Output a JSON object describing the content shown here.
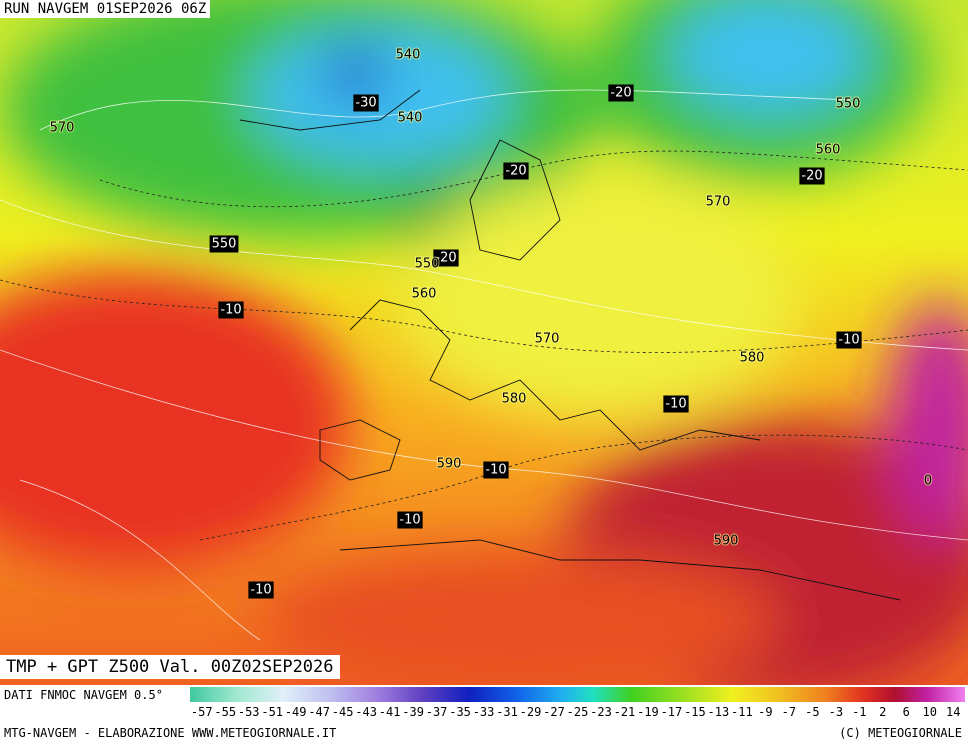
{
  "header": {
    "title": "RUN NAVGEM 01SEP2026 06Z"
  },
  "map": {
    "caption": "TMP + GPT Z500 Val. 00Z02SEP2026",
    "contour_labels": [
      "540",
      "-30",
      "540",
      "570",
      "-20",
      "550",
      "560",
      "-20",
      "-20",
      "570",
      "550",
      "-20",
      "550",
      "560",
      "-10",
      "-10",
      "570",
      "580",
      "-10",
      "580",
      "590",
      "-10",
      "0",
      "-10",
      "590",
      "-10"
    ]
  },
  "legend": {
    "source": "DATI FNMOC NAVGEM 0.5°",
    "labels": [
      "-57",
      "-55",
      "-53",
      "-51",
      "-49",
      "-47",
      "-45",
      "-43",
      "-41",
      "-39",
      "-37",
      "-35",
      "-33",
      "-31",
      "-29",
      "-27",
      "-25",
      "-23",
      "-21",
      "-19",
      "-17",
      "-15",
      "-13",
      "-11",
      "-9",
      "-7",
      "-5",
      "-3",
      "-1",
      "2",
      "6",
      "10",
      "14"
    ]
  },
  "footer": {
    "left": "MTG-NAVGEM - ELABORAZIONE WWW.METEOGIORNALE.IT",
    "right": "(C) METEOGIORNALE"
  }
}
